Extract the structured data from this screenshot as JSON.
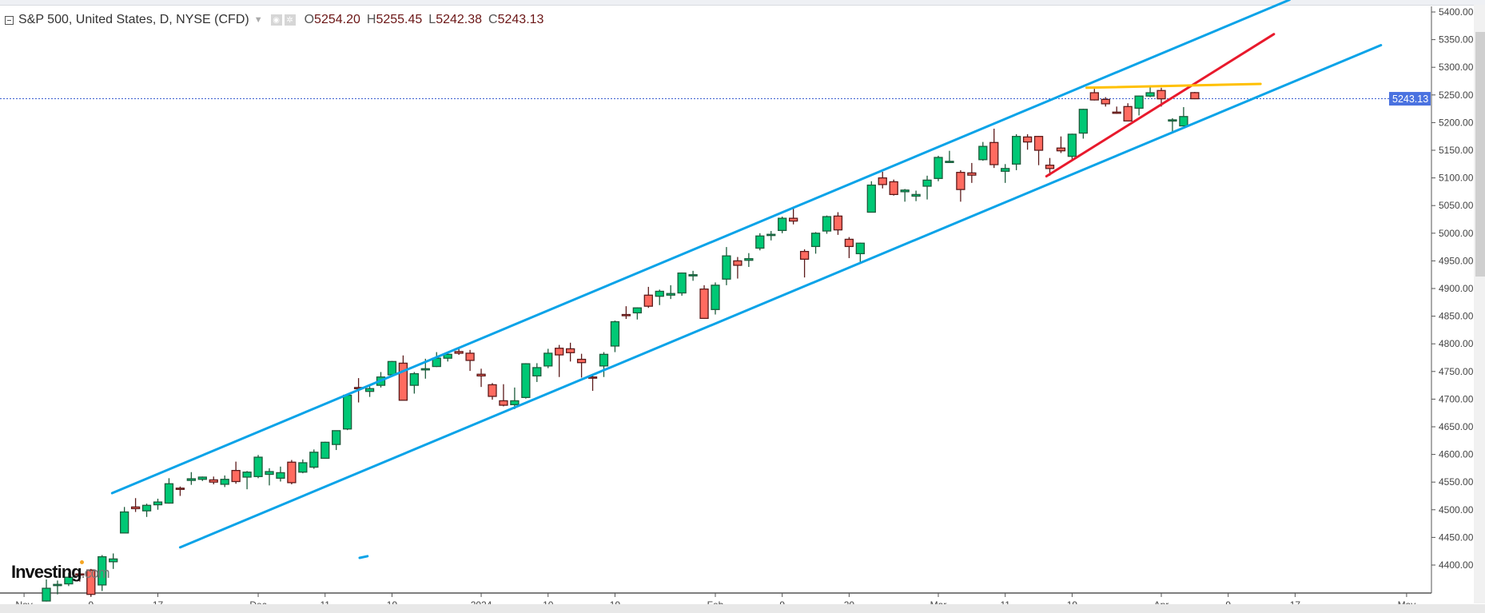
{
  "header": {
    "title": "S&P 500, United States, D, NYSE (CFD)",
    "open_key": "O",
    "open": "5254.20",
    "high_key": "H",
    "high": "5255.45",
    "low_key": "L",
    "low": "5242.38",
    "close_key": "C",
    "close": "5243.13"
  },
  "logo": {
    "main": "Investing",
    "suffix": ".com"
  },
  "colors": {
    "up_fill": "#00c875",
    "up_border": "#1d5c3c",
    "down_fill": "#ff6b60",
    "down_border": "#5c1a1a",
    "channel": "#0aa3e8",
    "red_trend": "#e8192c",
    "yellow_line": "#ffc000",
    "price_tag": "#4a72e0"
  },
  "chart_data": {
    "type": "candlestick",
    "title": "S&P 500, United States, D, NYSE (CFD)",
    "ylim": [
      4349,
      5411
    ],
    "y_ticks": [
      "5400.00",
      "5350.00",
      "5300.00",
      "5250.00",
      "5200.00",
      "5150.00",
      "5100.00",
      "5050.00",
      "5000.00",
      "4950.00",
      "4900.00",
      "4850.00",
      "4800.00",
      "4750.00",
      "4700.00",
      "4650.00",
      "4600.00",
      "4550.00",
      "4500.00",
      "4450.00",
      "4400.00"
    ],
    "last_price": "5243.13",
    "x_ticks": [
      {
        "label": "Nov",
        "date": "2023-11-01"
      },
      {
        "label": "9",
        "date": "2023-11-09"
      },
      {
        "label": "17",
        "date": "2023-11-17"
      },
      {
        "label": "Dec",
        "date": "2023-12-01"
      },
      {
        "label": "11",
        "date": "2023-12-11"
      },
      {
        "label": "19",
        "date": "2023-12-19"
      },
      {
        "label": "2024",
        "date": "2024-01-02"
      },
      {
        "label": "10",
        "date": "2024-01-10"
      },
      {
        "label": "19",
        "date": "2024-01-19"
      },
      {
        "label": "Feb",
        "date": "2024-02-01"
      },
      {
        "label": "9",
        "date": "2024-02-09"
      },
      {
        "label": "20",
        "date": "2024-02-20"
      },
      {
        "label": "Mar",
        "date": "2024-03-01"
      },
      {
        "label": "11",
        "date": "2024-03-11"
      },
      {
        "label": "19",
        "date": "2024-03-19"
      },
      {
        "label": "Apr",
        "date": "2024-04-01"
      },
      {
        "label": "9",
        "date": "2024-04-09"
      },
      {
        "label": "17",
        "date": "2024-04-17"
      },
      {
        "label": "May",
        "date": "2024-05-01"
      }
    ],
    "candles_fields": [
      "date",
      "open",
      "high",
      "low",
      "close"
    ],
    "candles": [
      [
        "2023-11-03",
        4335,
        4374,
        4334,
        4358
      ],
      [
        "2023-11-06",
        4364,
        4372,
        4347,
        4365
      ],
      [
        "2023-11-07",
        4366,
        4386,
        4362,
        4378
      ],
      [
        "2023-11-08",
        4384,
        4391,
        4370,
        4382
      ],
      [
        "2023-11-09",
        4391,
        4393,
        4343,
        4347
      ],
      [
        "2023-11-10",
        4364,
        4418,
        4353,
        4415
      ],
      [
        "2023-11-13",
        4406,
        4421,
        4393,
        4411
      ],
      [
        "2023-11-14",
        4458,
        4505,
        4458,
        4496
      ],
      [
        "2023-11-15",
        4505,
        4521,
        4496,
        4502
      ],
      [
        "2023-11-16",
        4498,
        4511,
        4487,
        4508
      ],
      [
        "2023-11-17",
        4509,
        4520,
        4500,
        4514
      ],
      [
        "2023-11-20",
        4512,
        4557,
        4511,
        4547
      ],
      [
        "2023-11-21",
        4539,
        4542,
        4525,
        4538
      ],
      [
        "2023-11-22",
        4553,
        4568,
        4545,
        4556
      ],
      [
        "2023-11-24",
        4555,
        4560,
        4552,
        4559
      ],
      [
        "2023-11-27",
        4554,
        4560,
        4546,
        4550
      ],
      [
        "2023-11-28",
        4546,
        4562,
        4541,
        4555
      ],
      [
        "2023-11-29",
        4571,
        4587,
        4547,
        4551
      ],
      [
        "2023-11-30",
        4559,
        4570,
        4537,
        4568
      ],
      [
        "2023-12-01",
        4560,
        4599,
        4557,
        4595
      ],
      [
        "2023-12-04",
        4564,
        4575,
        4544,
        4569
      ],
      [
        "2023-12-05",
        4557,
        4578,
        4551,
        4567
      ],
      [
        "2023-12-06",
        4586,
        4590,
        4546,
        4549
      ],
      [
        "2023-12-07",
        4568,
        4591,
        4566,
        4585
      ],
      [
        "2023-12-08",
        4577,
        4609,
        4574,
        4604
      ],
      [
        "2023-12-11",
        4593,
        4623,
        4593,
        4622
      ],
      [
        "2023-12-12",
        4618,
        4643,
        4608,
        4643
      ],
      [
        "2023-12-13",
        4646,
        4709,
        4644,
        4707
      ],
      [
        "2023-12-14",
        4721,
        4738,
        4694,
        4720
      ],
      [
        "2023-12-15",
        4714,
        4725,
        4704,
        4719
      ],
      [
        "2023-12-18",
        4725,
        4749,
        4721,
        4740
      ],
      [
        "2023-12-19",
        4744,
        4769,
        4744,
        4768
      ],
      [
        "2023-12-20",
        4765,
        4779,
        4698,
        4698
      ],
      [
        "2023-12-21",
        4725,
        4749,
        4710,
        4746
      ],
      [
        "2023-12-22",
        4753,
        4773,
        4737,
        4755
      ],
      [
        "2023-12-26",
        4759,
        4785,
        4758,
        4774
      ],
      [
        "2023-12-27",
        4774,
        4785,
        4768,
        4781
      ],
      [
        "2023-12-28",
        4786,
        4793,
        4780,
        4783
      ],
      [
        "2023-12-29",
        4783,
        4789,
        4751,
        4770
      ],
      [
        "2024-01-02",
        4745,
        4755,
        4722,
        4742
      ],
      [
        "2024-01-03",
        4726,
        4729,
        4699,
        4705
      ],
      [
        "2024-01-04",
        4697,
        4727,
        4687,
        4689
      ],
      [
        "2024-01-05",
        4690,
        4721,
        4682,
        4697
      ],
      [
        "2024-01-08",
        4703,
        4765,
        4701,
        4764
      ],
      [
        "2024-01-09",
        4742,
        4765,
        4731,
        4757
      ],
      [
        "2024-01-10",
        4760,
        4791,
        4756,
        4783
      ],
      [
        "2024-01-11",
        4792,
        4798,
        4740,
        4780
      ],
      [
        "2024-01-12",
        4791,
        4802,
        4768,
        4784
      ],
      [
        "2024-01-16",
        4772,
        4782,
        4739,
        4766
      ],
      [
        "2024-01-17",
        4740,
        4744,
        4715,
        4739
      ],
      [
        "2024-01-18",
        4760,
        4785,
        4740,
        4781
      ],
      [
        "2024-01-19",
        4796,
        4842,
        4785,
        4840
      ],
      [
        "2024-01-22",
        4853,
        4868,
        4845,
        4851
      ],
      [
        "2024-01-23",
        4856,
        4866,
        4844,
        4865
      ],
      [
        "2024-01-24",
        4888,
        4903,
        4865,
        4868
      ],
      [
        "2024-01-25",
        4886,
        4898,
        4870,
        4895
      ],
      [
        "2024-01-26",
        4888,
        4906,
        4881,
        4891
      ],
      [
        "2024-01-29",
        4892,
        4929,
        4887,
        4928
      ],
      [
        "2024-01-30",
        4925,
        4932,
        4914,
        4925
      ],
      [
        "2024-01-31",
        4899,
        4906,
        4845,
        4846
      ],
      [
        "2024-02-01",
        4862,
        4911,
        4853,
        4906
      ],
      [
        "2024-02-02",
        4917,
        4975,
        4906,
        4959
      ],
      [
        "2024-02-05",
        4950,
        4957,
        4918,
        4942
      ],
      [
        "2024-02-06",
        4951,
        4964,
        4939,
        4954
      ],
      [
        "2024-02-07",
        4973,
        5000,
        4969,
        4995
      ],
      [
        "2024-02-08",
        4996,
        5004,
        4987,
        4998
      ],
      [
        "2024-02-09",
        5005,
        5030,
        5000,
        5027
      ],
      [
        "2024-02-12",
        5027,
        5048,
        5016,
        5022
      ],
      [
        "2024-02-13",
        4967,
        4971,
        4920,
        4953
      ],
      [
        "2024-02-14",
        4976,
        5002,
        4963,
        5000
      ],
      [
        "2024-02-15",
        5004,
        5032,
        4999,
        5030
      ],
      [
        "2024-02-16",
        5031,
        5038,
        4997,
        5006
      ],
      [
        "2024-02-20",
        4989,
        4993,
        4955,
        4976
      ],
      [
        "2024-02-21",
        4963,
        4983,
        4946,
        4982
      ],
      [
        "2024-02-22",
        5038,
        5094,
        5038,
        5087
      ],
      [
        "2024-02-23",
        5100,
        5111,
        5081,
        5088
      ],
      [
        "2024-02-26",
        5093,
        5097,
        5068,
        5070
      ],
      [
        "2024-02-27",
        5075,
        5080,
        5057,
        5078
      ],
      [
        "2024-02-28",
        5067,
        5077,
        5058,
        5070
      ],
      [
        "2024-02-29",
        5085,
        5104,
        5061,
        5096
      ],
      [
        "2024-03-01",
        5099,
        5140,
        5094,
        5137
      ],
      [
        "2024-03-04",
        5130,
        5149,
        5127,
        5130
      ],
      [
        "2024-03-05",
        5110,
        5114,
        5057,
        5079
      ],
      [
        "2024-03-06",
        5109,
        5127,
        5091,
        5105
      ],
      [
        "2024-03-07",
        5133,
        5165,
        5131,
        5157
      ],
      [
        "2024-03-08",
        5164,
        5189,
        5118,
        5124
      ],
      [
        "2024-03-11",
        5112,
        5125,
        5091,
        5117
      ],
      [
        "2024-03-12",
        5125,
        5179,
        5114,
        5175
      ],
      [
        "2024-03-13",
        5174,
        5179,
        5151,
        5165
      ],
      [
        "2024-03-14",
        5175,
        5176,
        5123,
        5150
      ],
      [
        "2024-03-15",
        5123,
        5136,
        5104,
        5117
      ],
      [
        "2024-03-18",
        5154,
        5175,
        5145,
        5149
      ],
      [
        "2024-03-19",
        5139,
        5180,
        5131,
        5179
      ],
      [
        "2024-03-20",
        5181,
        5225,
        5171,
        5224
      ],
      [
        "2024-03-21",
        5254,
        5261,
        5240,
        5241
      ],
      [
        "2024-03-22",
        5242,
        5246,
        5229,
        5234
      ],
      [
        "2024-03-25",
        5219,
        5229,
        5216,
        5218
      ],
      [
        "2024-03-26",
        5229,
        5235,
        5203,
        5203
      ],
      [
        "2024-03-27",
        5226,
        5249,
        5213,
        5248
      ],
      [
        "2024-03-28",
        5248,
        5264,
        5246,
        5254
      ],
      [
        "2024-04-01",
        5258,
        5263,
        5229,
        5243
      ],
      [
        "2024-04-02",
        5204,
        5208,
        5184,
        5205
      ],
      [
        "2024-04-03",
        5194,
        5228,
        5194,
        5211
      ],
      [
        "2024-04-04",
        5254.2,
        5255.45,
        5242.38,
        5243.13
      ]
    ],
    "drawings": [
      {
        "name": "upper-channel-line",
        "color_key": "channel",
        "from": {
          "bar": 5.9,
          "price": 4530
        },
        "to": {
          "bar": 111.5,
          "price": 5422
        }
      },
      {
        "name": "lower-channel-line",
        "color_key": "channel",
        "from": {
          "bar": 12.0,
          "price": 4432
        },
        "to": {
          "bar": 119.7,
          "price": 5340
        }
      },
      {
        "name": "channel-stub-line",
        "color_key": "channel",
        "from": {
          "bar": 28.1,
          "price": 4413
        },
        "to": {
          "bar": 28.8,
          "price": 4416
        }
      },
      {
        "name": "red-trend-line",
        "color_key": "red_trend",
        "from": {
          "bar": 89.7,
          "price": 5103
        },
        "to": {
          "bar": 110.1,
          "price": 5360
        }
      },
      {
        "name": "yellow-resistance-line",
        "color_key": "yellow_line",
        "from": {
          "bar": 93.3,
          "price": 5263
        },
        "to": {
          "bar": 108.9,
          "price": 5270
        }
      }
    ]
  }
}
